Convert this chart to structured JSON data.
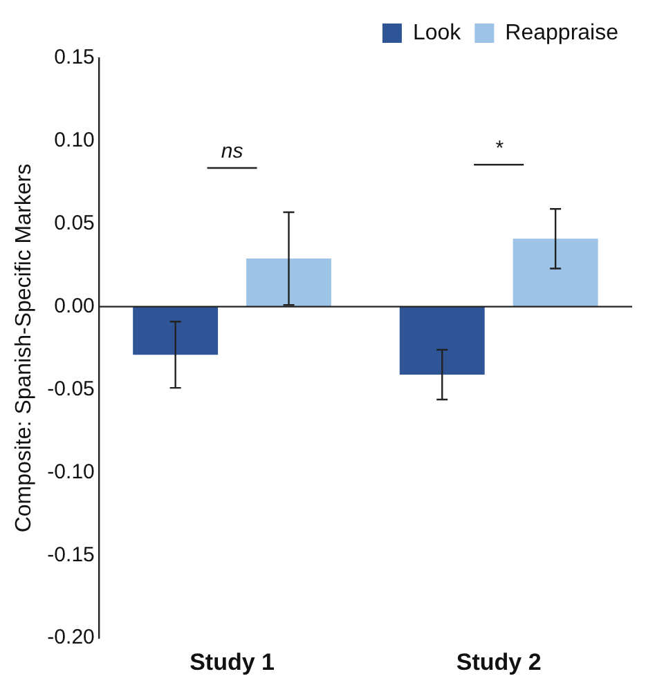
{
  "chart_data": {
    "type": "bar",
    "ylabel": "Composite: Spanish-Specific Markers",
    "categories": [
      "Study 1",
      "Study 2"
    ],
    "series": [
      {
        "name": "Look",
        "color": "#2f5597",
        "values": [
          -0.029,
          -0.041
        ],
        "errors": [
          [
            -0.049,
            -0.009
          ],
          [
            -0.056,
            -0.026
          ]
        ]
      },
      {
        "name": "Reappraise",
        "color": "#9dc3e6",
        "values": [
          0.029,
          0.041
        ],
        "errors": [
          [
            0.001,
            0.057
          ],
          [
            0.023,
            0.059
          ]
        ]
      }
    ],
    "ylim": [
      -0.2,
      0.15
    ],
    "yticks": [
      {
        "value": -0.2,
        "label": "-0.20"
      },
      {
        "value": -0.15,
        "label": "-0.15"
      },
      {
        "value": -0.1,
        "label": "-0.10"
      },
      {
        "value": -0.05,
        "label": "-0.05"
      },
      {
        "value": 0,
        "label": "0.00"
      },
      {
        "value": 0.05,
        "label": "0.05"
      },
      {
        "value": 0.1,
        "label": "0.10"
      },
      {
        "value": 0.15,
        "label": "0.15"
      }
    ],
    "annotations": [
      "ns",
      "*"
    ],
    "ref_lines": [
      {
        "axis": "y",
        "value": 0,
        "color": "#222222"
      }
    ],
    "legend": "top right",
    "grid": false
  }
}
